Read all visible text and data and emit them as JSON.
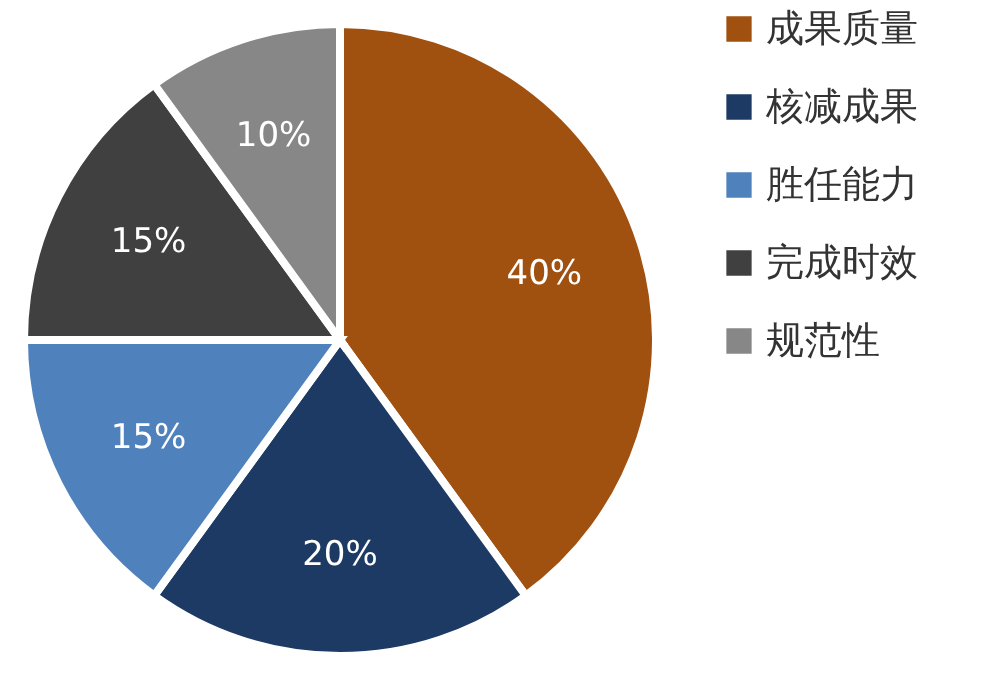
{
  "chart_data": {
    "type": "pie",
    "categories": [
      "成果质量",
      "核减成果",
      "胜任能力",
      "完成时效",
      "规范性"
    ],
    "values": [
      40,
      20,
      15,
      15,
      10
    ],
    "value_labels": [
      "40%",
      "20%",
      "15%",
      "15%",
      "10%"
    ],
    "colors": [
      "#a0500f",
      "#1c3a63",
      "#4f81bd",
      "#404040",
      "#878787"
    ],
    "legend": "right"
  }
}
